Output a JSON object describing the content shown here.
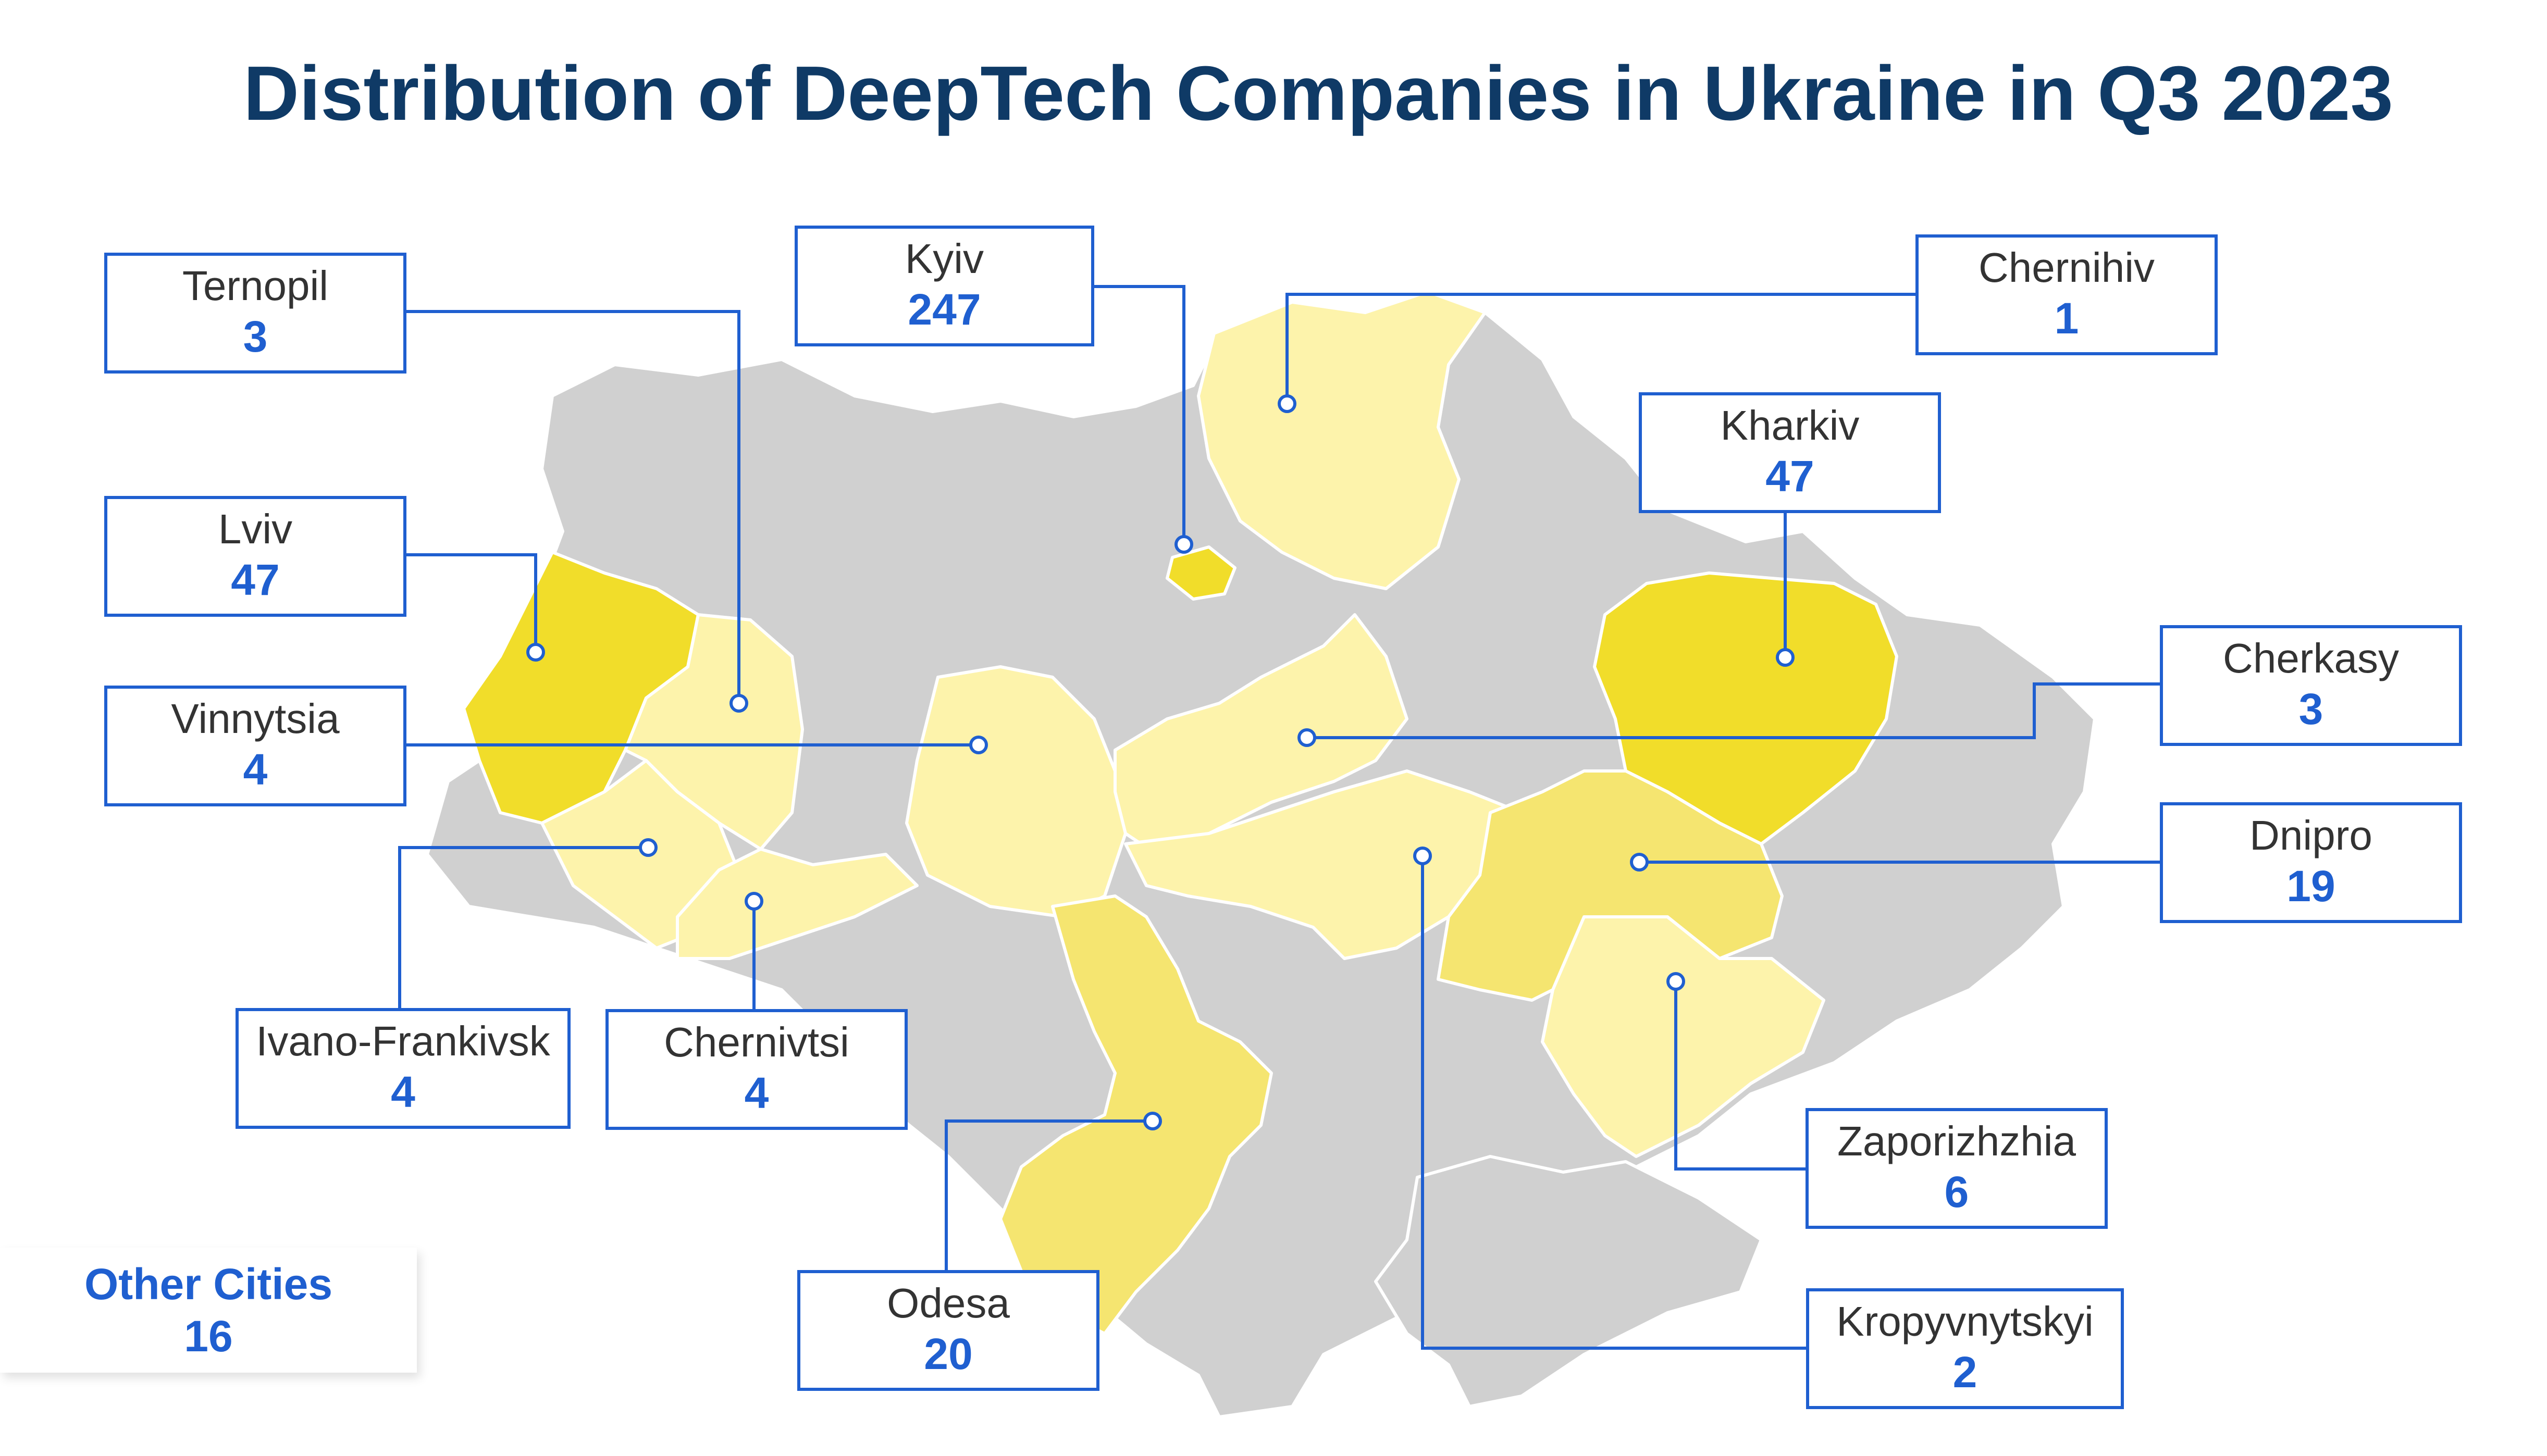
{
  "title": "Distribution of DeepTech Companies in Ukraine in Q3 2023",
  "colors": {
    "box_border": "#1f5fd0",
    "count_text": "#1f5fd0",
    "title_text": "#0f3a66",
    "region_grey": "#d0d0d0",
    "region_pale": "#fdf3ab",
    "region_mid": "#f5e570",
    "region_strong": "#f1dd2a"
  },
  "cities": [
    {
      "name": "Ternopil",
      "count": "3"
    },
    {
      "name": "Kyiv",
      "count": "247"
    },
    {
      "name": "Chernihiv",
      "count": "1"
    },
    {
      "name": "Lviv",
      "count": "47"
    },
    {
      "name": "Kharkiv",
      "count": "47"
    },
    {
      "name": "Vinnytsia",
      "count": "4"
    },
    {
      "name": "Cherkasy",
      "count": "3"
    },
    {
      "name": "Dnipro",
      "count": "19"
    },
    {
      "name": "Ivano-Frankivsk",
      "count": "4"
    },
    {
      "name": "Chernivtsi",
      "count": "4"
    },
    {
      "name": "Zaporizhzhia",
      "count": "6"
    },
    {
      "name": "Odesa",
      "count": "20"
    },
    {
      "name": "Kropyvnytskyi",
      "count": "2"
    }
  ],
  "other_cities": {
    "name": "Other Cities",
    "count": "16"
  }
}
